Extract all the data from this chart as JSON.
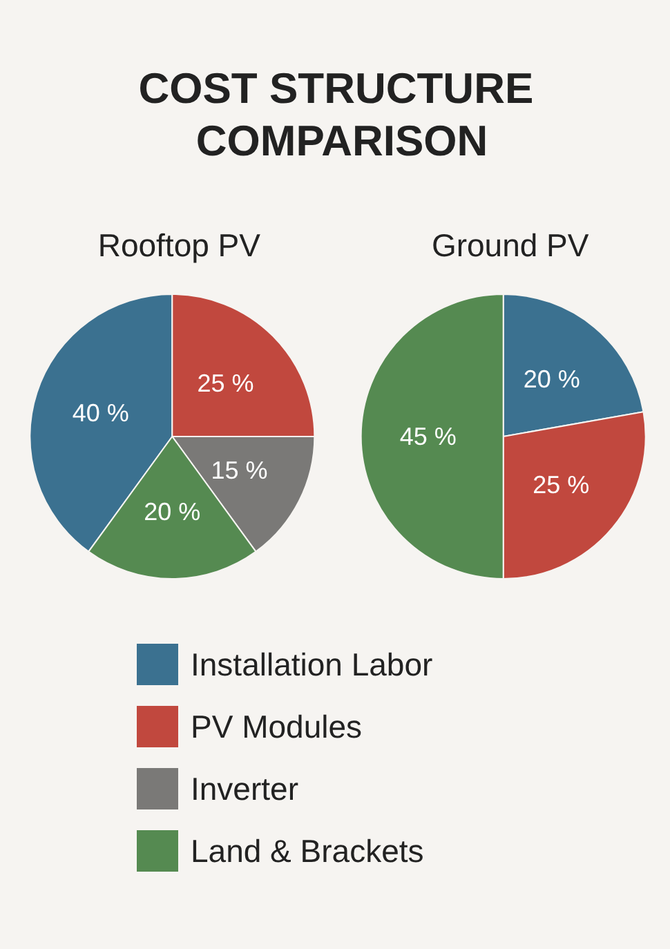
{
  "chart_data": {
    "type": "pie",
    "title": "COST STRUCTURE COMPARISON",
    "categories": [
      "Installation Labor",
      "PV Modules",
      "Inverter",
      "Land & Brackets"
    ],
    "colors": [
      "#3b7190",
      "#c1483e",
      "#7a7977",
      "#558a51"
    ],
    "series": [
      {
        "name": "Rooftop PV",
        "values": [
          40,
          25,
          15,
          20
        ],
        "value_labels": [
          "40 %",
          "25 %",
          "15 %",
          "20 %"
        ]
      },
      {
        "name": "Ground PV",
        "values": [
          20,
          25,
          null,
          45
        ],
        "value_labels": [
          "20 %",
          "25 %",
          null,
          "45 %"
        ]
      }
    ],
    "legend": "bottom"
  }
}
